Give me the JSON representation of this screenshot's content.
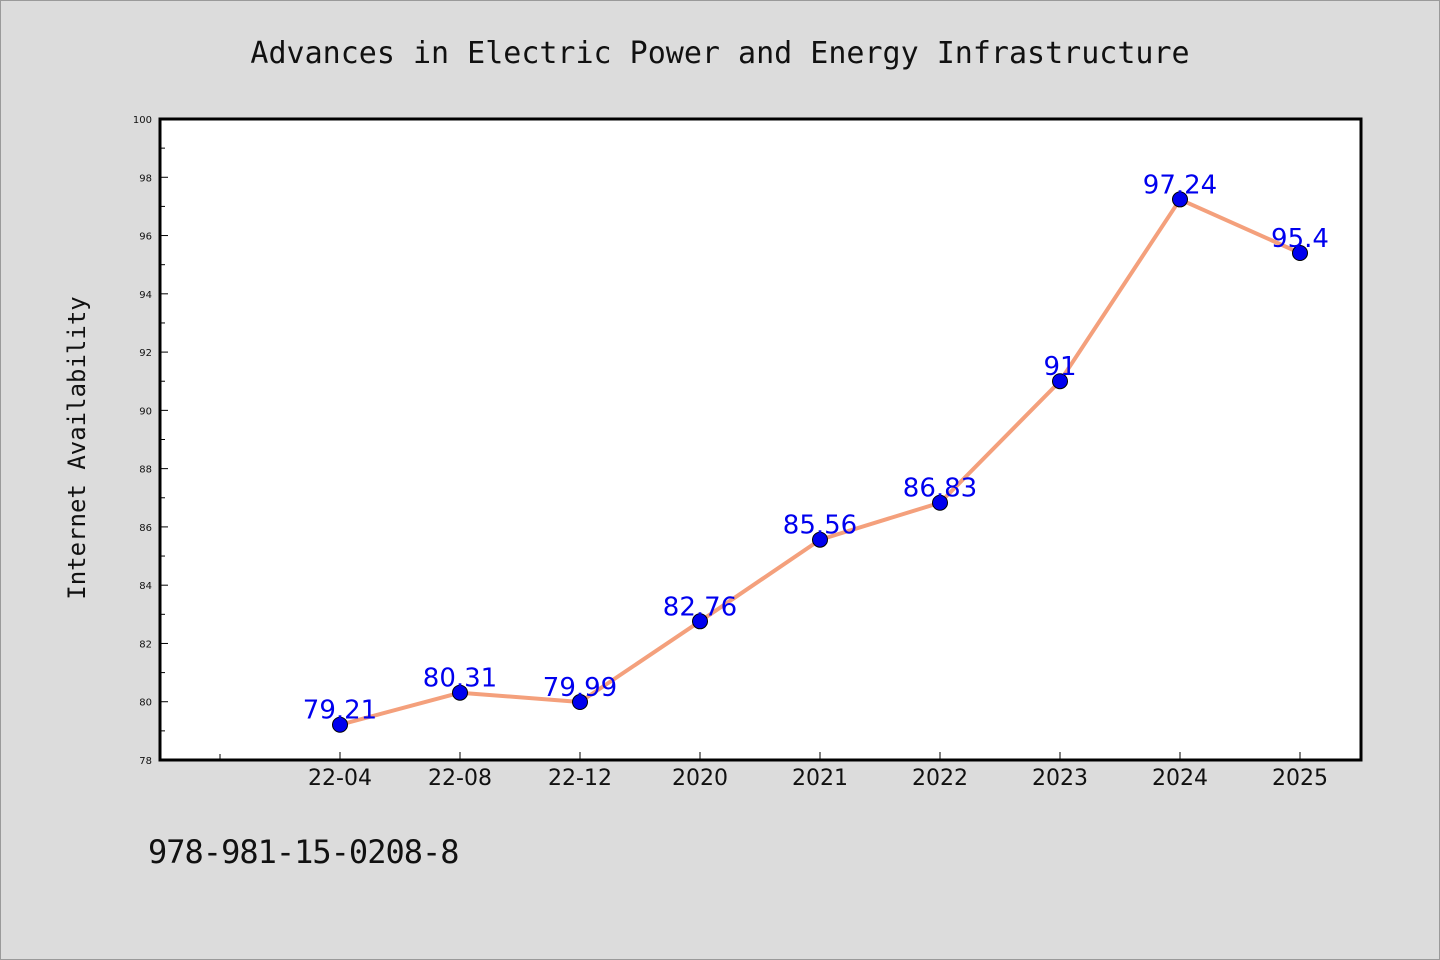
{
  "chart_data": {
    "type": "line",
    "title": "Advances in Electric Power and Energy Infrastructure",
    "xlabel": "",
    "ylabel": "Internet Availability",
    "categories": [
      "22-04",
      "22-08",
      "22-12",
      "2020",
      "2021",
      "2022",
      "2023",
      "2024",
      "2025"
    ],
    "series": [
      {
        "values": [
          79.21,
          80.31,
          79.99,
          82.76,
          85.56,
          86.83,
          91,
          97.24,
          95.4
        ],
        "labels": [
          "79.21",
          "80.31",
          "79.99",
          "82.76",
          "85.56",
          "86.83",
          "91",
          "97.24",
          "95.4"
        ],
        "line_color": "#f4a07c",
        "marker_color": "#0000ee",
        "label_color": "#0000ee"
      }
    ],
    "ylim": [
      78,
      100
    ],
    "yticks": [
      78,
      80,
      82,
      84,
      86,
      88,
      90,
      92,
      94,
      96,
      98,
      100
    ],
    "grid": false,
    "legend": "none"
  },
  "footer_code": "978-981-15-0208-8"
}
